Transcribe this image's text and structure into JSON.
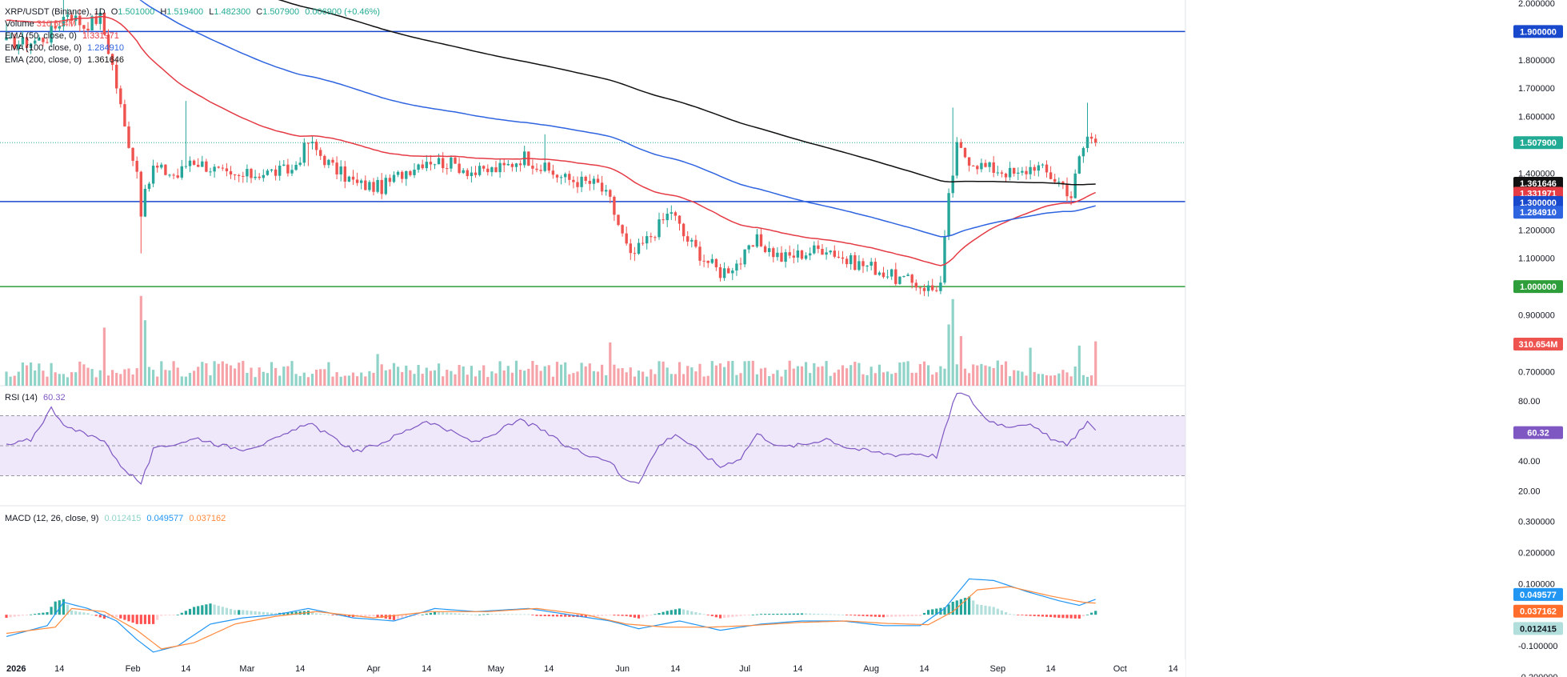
{
  "header": {
    "symbol": "XRP/USDT (Binance), 1D",
    "o_label": "O",
    "o_value": "1.501000",
    "h_label": "H",
    "h_value": "1.519400",
    "l_label": "L",
    "l_value": "1.482300",
    "c_label": "C",
    "c_value": "1.507900",
    "change": "0.006900 (+0.46%)",
    "volume_label": "Volume",
    "volume_value": "310.654M",
    "ema50_label": "EMA (50, close, 0)",
    "ema50_value": "1.331971",
    "ema100_label": "EMA (100, close, 0)",
    "ema100_value": "1.284910",
    "ema200_label": "EMA (200, close, 0)",
    "ema200_value": "1.361646"
  },
  "rsi_legend": {
    "label": "RSI (14)",
    "value": "60.32"
  },
  "macd_legend": {
    "label": "MACD (12, 26, close, 9)",
    "hist": "0.012415",
    "macd": "0.049577",
    "signal": "0.037162"
  },
  "colors": {
    "up": "#26a69a",
    "down": "#ef5350",
    "vol_up": "#8fd3c8",
    "vol_down": "#f5a3a8",
    "ema50": "#e53b45",
    "ema100": "#2f64e0",
    "ema200": "#111111",
    "hline_blue": "#1848cc",
    "hline_green": "#2e9e3a",
    "rsi": "#7e57c2",
    "rsi_band": "#efe8fb",
    "macd": "#2196f3",
    "signal": "#ff8a3d"
  },
  "chart_data": {
    "type": "candlestick",
    "x_axis": {
      "ticks": [
        {
          "label": "2026",
          "day": 0
        },
        {
          "label": "14",
          "day": 13
        },
        {
          "label": "Feb",
          "day": 31
        },
        {
          "label": "14",
          "day": 44
        },
        {
          "label": "Mar",
          "day": 59
        },
        {
          "label": "14",
          "day": 72
        },
        {
          "label": "Apr",
          "day": 90
        },
        {
          "label": "14",
          "day": 103
        },
        {
          "label": "May",
          "day": 120
        },
        {
          "label": "14",
          "day": 133
        },
        {
          "label": "Jun",
          "day": 151
        },
        {
          "label": "14",
          "day": 164
        },
        {
          "label": "Jul",
          "day": 181
        },
        {
          "label": "14",
          "day": 194
        },
        {
          "label": "Aug",
          "day": 212
        },
        {
          "label": "14",
          "day": 225
        },
        {
          "label": "Sep",
          "day": 243
        },
        {
          "label": "14",
          "day": 256
        },
        {
          "label": "Oct",
          "day": 273
        },
        {
          "label": "14",
          "day": 286
        }
      ],
      "last_day": 267
    },
    "price": {
      "y_ticks": [
        "2.000000",
        "1.900000",
        "1.800000",
        "1.700000",
        "1.600000",
        "1.500000",
        "1.400000",
        "1.300000",
        "1.200000",
        "1.100000",
        "1.000000",
        "0.900000",
        "0.800000",
        "0.700000"
      ],
      "ylim": [
        0.65,
        2.0
      ],
      "knots": [
        [
          0,
          1.86
        ],
        [
          5,
          1.86
        ],
        [
          10,
          1.88
        ],
        [
          15,
          1.97
        ],
        [
          19,
          1.92
        ],
        [
          23,
          1.95
        ],
        [
          26,
          1.78
        ],
        [
          29,
          1.56
        ],
        [
          32,
          1.41
        ],
        [
          33,
          1.27
        ],
        [
          36,
          1.42
        ],
        [
          42,
          1.39
        ],
        [
          45,
          1.45
        ],
        [
          50,
          1.42
        ],
        [
          55,
          1.38
        ],
        [
          62,
          1.4
        ],
        [
          70,
          1.41
        ],
        [
          74,
          1.51
        ],
        [
          80,
          1.42
        ],
        [
          86,
          1.36
        ],
        [
          92,
          1.35
        ],
        [
          98,
          1.41
        ],
        [
          103,
          1.45
        ],
        [
          110,
          1.43
        ],
        [
          115,
          1.4
        ],
        [
          122,
          1.42
        ],
        [
          127,
          1.46
        ],
        [
          131,
          1.42
        ],
        [
          137,
          1.38
        ],
        [
          145,
          1.36
        ],
        [
          148,
          1.3
        ],
        [
          153,
          1.1
        ],
        [
          158,
          1.18
        ],
        [
          163,
          1.27
        ],
        [
          166,
          1.18
        ],
        [
          171,
          1.1
        ],
        [
          175,
          1.05
        ],
        [
          180,
          1.09
        ],
        [
          184,
          1.16
        ],
        [
          190,
          1.1
        ],
        [
          196,
          1.12
        ],
        [
          201,
          1.14
        ],
        [
          206,
          1.09
        ],
        [
          212,
          1.07
        ],
        [
          218,
          1.03
        ],
        [
          223,
          1.01
        ],
        [
          227,
          0.99
        ],
        [
          229,
          1.01
        ],
        [
          231,
          1.31
        ],
        [
          233,
          1.49
        ],
        [
          236,
          1.45
        ],
        [
          240,
          1.42
        ],
        [
          244,
          1.41
        ],
        [
          248,
          1.39
        ],
        [
          252,
          1.43
        ],
        [
          256,
          1.39
        ],
        [
          259,
          1.36
        ],
        [
          261,
          1.32
        ],
        [
          263,
          1.45
        ],
        [
          265,
          1.53
        ],
        [
          267,
          1.5079
        ]
      ],
      "wicks": [
        [
          0,
          0.05
        ],
        [
          14,
          0.12
        ],
        [
          33,
          0.13
        ],
        [
          44,
          0.23
        ],
        [
          74,
          0.08
        ],
        [
          132,
          0.1
        ],
        [
          232,
          0.24
        ],
        [
          265,
          0.12
        ]
      ],
      "last_close": 1.5079,
      "ema50_last": 1.331971,
      "ema100_last": 1.28491,
      "ema200_last": 1.361646,
      "hlines": [
        1.9,
        1.3,
        1.0
      ]
    },
    "volume": {
      "last": "310.654M",
      "spikes": [
        [
          24,
          0.55
        ],
        [
          33,
          0.85
        ],
        [
          34,
          0.62
        ],
        [
          91,
          0.3
        ],
        [
          148,
          0.41
        ],
        [
          231,
          0.58
        ],
        [
          232,
          0.82
        ],
        [
          234,
          0.47
        ],
        [
          251,
          0.36
        ],
        [
          263,
          0.38
        ],
        [
          267,
          0.42
        ]
      ]
    },
    "rsi": {
      "y_ticks": [
        "80.00",
        "40.00",
        "20.00"
      ],
      "ylim": [
        10,
        90
      ],
      "bands": [
        70,
        50,
        30
      ],
      "knots": [
        [
          0,
          50
        ],
        [
          6,
          54
        ],
        [
          11,
          75
        ],
        [
          15,
          62
        ],
        [
          20,
          57
        ],
        [
          24,
          54
        ],
        [
          27,
          40
        ],
        [
          30,
          32
        ],
        [
          33,
          25
        ],
        [
          36,
          47
        ],
        [
          42,
          52
        ],
        [
          47,
          55
        ],
        [
          53,
          50
        ],
        [
          58,
          48
        ],
        [
          64,
          52
        ],
        [
          70,
          59
        ],
        [
          74,
          66
        ],
        [
          80,
          55
        ],
        [
          86,
          46
        ],
        [
          92,
          52
        ],
        [
          98,
          60
        ],
        [
          103,
          67
        ],
        [
          110,
          58
        ],
        [
          115,
          52
        ],
        [
          120,
          59
        ],
        [
          126,
          67
        ],
        [
          131,
          61
        ],
        [
          137,
          50
        ],
        [
          143,
          44
        ],
        [
          148,
          40
        ],
        [
          151,
          28
        ],
        [
          155,
          26
        ],
        [
          160,
          50
        ],
        [
          164,
          58
        ],
        [
          169,
          48
        ],
        [
          175,
          36
        ],
        [
          180,
          42
        ],
        [
          184,
          58
        ],
        [
          190,
          49
        ],
        [
          196,
          51
        ],
        [
          201,
          55
        ],
        [
          206,
          49
        ],
        [
          212,
          46
        ],
        [
          218,
          44
        ],
        [
          223,
          45
        ],
        [
          228,
          43
        ],
        [
          230,
          60
        ],
        [
          233,
          86
        ],
        [
          236,
          82
        ],
        [
          240,
          68
        ],
        [
          245,
          63
        ],
        [
          250,
          65
        ],
        [
          256,
          55
        ],
        [
          260,
          50
        ],
        [
          263,
          60
        ],
        [
          265,
          66
        ],
        [
          267,
          60.32
        ]
      ],
      "last": "60.32"
    },
    "macd": {
      "y_ticks": [
        "0.300000",
        "0.200000",
        "0.100000",
        "-0.100000",
        "-0.200000"
      ],
      "ylim": [
        -0.2,
        0.35
      ],
      "macd_knots": [
        [
          0,
          -0.07
        ],
        [
          10,
          -0.035
        ],
        [
          14,
          0.04
        ],
        [
          20,
          0.02
        ],
        [
          27,
          -0.02
        ],
        [
          32,
          -0.08
        ],
        [
          36,
          -0.12
        ],
        [
          42,
          -0.1
        ],
        [
          50,
          -0.03
        ],
        [
          58,
          -0.01
        ],
        [
          66,
          0.0
        ],
        [
          74,
          0.02
        ],
        [
          85,
          -0.01
        ],
        [
          95,
          -0.02
        ],
        [
          105,
          0.02
        ],
        [
          115,
          0.01
        ],
        [
          128,
          0.02
        ],
        [
          138,
          0.0
        ],
        [
          148,
          -0.02
        ],
        [
          155,
          -0.045
        ],
        [
          165,
          -0.02
        ],
        [
          175,
          -0.05
        ],
        [
          185,
          -0.03
        ],
        [
          195,
          -0.02
        ],
        [
          205,
          -0.02
        ],
        [
          215,
          -0.035
        ],
        [
          224,
          -0.035
        ],
        [
          230,
          0.02
        ],
        [
          236,
          0.115
        ],
        [
          242,
          0.11
        ],
        [
          250,
          0.075
        ],
        [
          258,
          0.045
        ],
        [
          263,
          0.03
        ],
        [
          267,
          0.049577
        ]
      ],
      "signal_knots": [
        [
          0,
          -0.06
        ],
        [
          12,
          -0.04
        ],
        [
          16,
          0.02
        ],
        [
          24,
          0.01
        ],
        [
          32,
          -0.05
        ],
        [
          38,
          -0.11
        ],
        [
          46,
          -0.09
        ],
        [
          56,
          -0.03
        ],
        [
          66,
          -0.005
        ],
        [
          76,
          0.01
        ],
        [
          90,
          -0.01
        ],
        [
          104,
          0.01
        ],
        [
          118,
          0.01
        ],
        [
          130,
          0.02
        ],
        [
          142,
          0.0
        ],
        [
          152,
          -0.03
        ],
        [
          162,
          -0.04
        ],
        [
          172,
          -0.04
        ],
        [
          182,
          -0.035
        ],
        [
          194,
          -0.025
        ],
        [
          206,
          -0.02
        ],
        [
          216,
          -0.028
        ],
        [
          226,
          -0.032
        ],
        [
          232,
          0.01
        ],
        [
          238,
          0.08
        ],
        [
          246,
          0.09
        ],
        [
          256,
          0.06
        ],
        [
          264,
          0.04
        ],
        [
          267,
          0.037162
        ]
      ],
      "last_macd": "0.049577",
      "last_signal": "0.037162",
      "last_hist": "0.012415"
    }
  }
}
